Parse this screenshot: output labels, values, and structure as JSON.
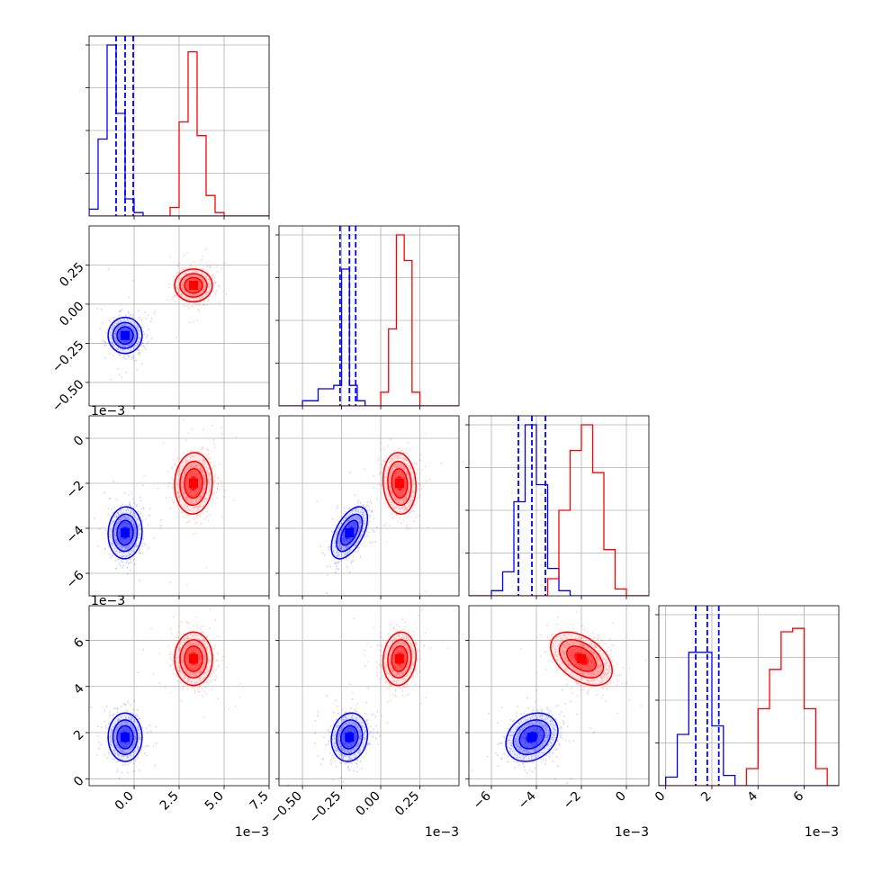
{
  "figure": {
    "type": "corner_plot"
  },
  "colors": {
    "series_a": "#0000ff",
    "series_b": "#ff0000",
    "grid": "#b0b0b0"
  },
  "chart_data": {
    "type": "scatter",
    "n_params": 4,
    "params": [
      {
        "lim": [
          -2.5,
          7.5
        ],
        "ticks": [
          0.0,
          2.5,
          5.0,
          7.5
        ],
        "tick_labels": [
          "0.0",
          "2.5",
          "5.0",
          "7.5"
        ],
        "offset_label": "1e−3"
      },
      {
        "lim": [
          -0.65,
          0.5
        ],
        "ticks": [
          -0.5,
          -0.25,
          0.0,
          0.25
        ],
        "tick_labels": [
          "−0.50",
          "−0.25",
          "0.00",
          "0.25"
        ],
        "offset_label": "1e−3"
      },
      {
        "lim": [
          -7.0,
          1.0
        ],
        "ticks": [
          -6,
          -4,
          -2,
          0
        ],
        "tick_labels": [
          "−6",
          "−4",
          "−2",
          "0"
        ],
        "offset_label": "1e−3"
      },
      {
        "lim": [
          -0.3,
          7.5
        ],
        "ticks": [
          0,
          2,
          4,
          6
        ],
        "tick_labels": [
          "0",
          "2",
          "4",
          "6"
        ],
        "offset_label": "1e−3"
      }
    ],
    "series": [
      {
        "color": "#0000ff",
        "mean": [
          -0.5,
          -0.2,
          -4.2,
          1.8
        ],
        "std": [
          0.45,
          0.055,
          0.55,
          0.5
        ],
        "quantiles": [
          [
            -1.0,
            -0.5,
            -0.05
          ],
          [
            -0.26,
            -0.2,
            -0.16
          ],
          [
            -4.8,
            -4.2,
            -3.6
          ],
          [
            1.3,
            1.8,
            2.3
          ]
        ],
        "hist": [
          {
            "edges": [
              -2.5,
              -2.0,
              -1.5,
              -1.0,
              -0.5,
              0.0,
              0.5
            ],
            "counts": [
              0.04,
              0.45,
              1.0,
              0.6,
              0.1,
              0.02
            ]
          },
          {
            "edges": [
              -0.5,
              -0.4,
              -0.3,
              -0.25,
              -0.2,
              -0.15,
              -0.1
            ],
            "counts": [
              0.03,
              0.1,
              0.12,
              0.8,
              0.12,
              0.03
            ]
          },
          {
            "edges": [
              -6.0,
              -5.5,
              -5.0,
              -4.5,
              -4.0,
              -3.5,
              -3.0,
              -2.5
            ],
            "counts": [
              0.03,
              0.14,
              0.55,
              1.0,
              0.65,
              0.16,
              0.03
            ]
          },
          {
            "edges": [
              0.0,
              0.5,
              1.0,
              1.5,
              2.0,
              2.5,
              3.0
            ],
            "counts": [
              0.05,
              0.3,
              0.78,
              0.78,
              0.35,
              0.06
            ]
          }
        ]
      },
      {
        "color": "#ff0000",
        "mean": [
          3.3,
          0.12,
          -2.0,
          5.2
        ],
        "std": [
          0.5,
          0.05,
          0.65,
          0.55
        ],
        "quantiles": [],
        "hist": [
          {
            "edges": [
              2.0,
              2.5,
              3.0,
              3.5,
              4.0,
              4.5,
              5.0
            ],
            "counts": [
              0.05,
              0.55,
              0.96,
              0.47,
              0.12,
              0.02
            ]
          },
          {
            "edges": [
              0.0,
              0.05,
              0.1,
              0.15,
              0.2,
              0.25
            ],
            "counts": [
              0.08,
              0.45,
              1.0,
              0.85,
              0.08
            ]
          },
          {
            "edges": [
              -3.5,
              -3.0,
              -2.5,
              -2.0,
              -1.5,
              -1.0,
              -0.5,
              0.0
            ],
            "counts": [
              0.1,
              0.5,
              0.85,
              1.0,
              0.72,
              0.27,
              0.04
            ]
          },
          {
            "edges": [
              3.5,
              4.0,
              4.5,
              5.0,
              5.5,
              6.0,
              6.5,
              7.0
            ],
            "counts": [
              0.1,
              0.45,
              0.68,
              0.9,
              0.92,
              0.45,
              0.1
            ]
          }
        ]
      }
    ],
    "grid": true
  }
}
